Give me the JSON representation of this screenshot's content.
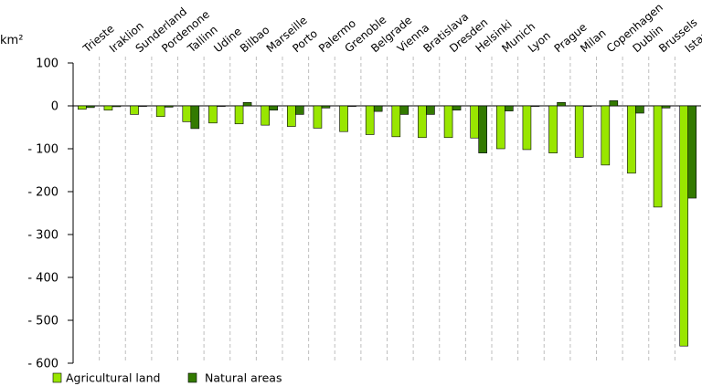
{
  "chart_data": {
    "type": "bar",
    "unit_label": "km²",
    "categories": [
      "Trieste",
      "Iraklion",
      "Sunderland",
      "Pordenone",
      "Tallinn",
      "Udine",
      "Bilbao",
      "Marseille",
      "Porto",
      "Palermo",
      "Grenoble",
      "Belgrade",
      "Vienna",
      "Bratislava",
      "Dresden",
      "Helsinki",
      "Munich",
      "Lyon",
      "Prague",
      "Milan",
      "Copenhagen",
      "Dublin",
      "Brussels",
      "Istanbul"
    ],
    "series": [
      {
        "name": "Agricultural land",
        "color": "#99e600",
        "values": [
          -8,
          -10,
          -20,
          -25,
          -37,
          -40,
          -42,
          -45,
          -48,
          -52,
          -60,
          -67,
          -72,
          -74,
          -74,
          -75,
          -100,
          -102,
          -110,
          -120,
          -138,
          -157,
          -236,
          -560
        ]
      },
      {
        "name": "Natural areas",
        "color": "#337a00",
        "values": [
          -4,
          -2,
          0,
          -3,
          -53,
          0,
          8,
          -10,
          -20,
          -5,
          0,
          -13,
          -20,
          -20,
          -10,
          -110,
          -12,
          0,
          8,
          0,
          12,
          -17,
          -5,
          -215
        ]
      }
    ],
    "ylim": [
      -600,
      100
    ],
    "yticks": [
      100,
      0,
      -100,
      -200,
      -300,
      -400,
      -500,
      -600
    ],
    "ytick_labels": [
      "100",
      "0",
      "- 100",
      "- 200",
      "- 300",
      "- 400",
      "- 500",
      "- 600"
    ],
    "grid": "vertical dashed separators between categories",
    "legend": "bottom-left"
  }
}
